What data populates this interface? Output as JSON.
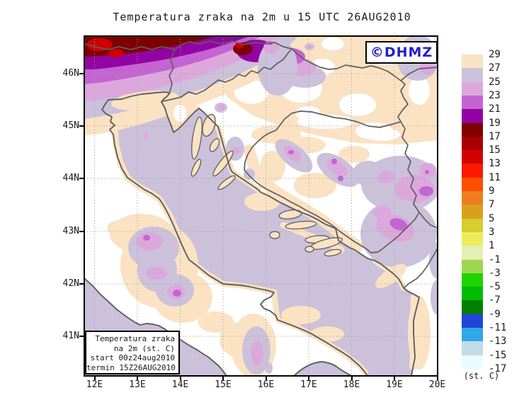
{
  "title": "Temperatura zraka na 2m u 15 UTC 26AUG2010",
  "watermark": {
    "text": "©DHMZ",
    "color": "#2121CC"
  },
  "info_box": {
    "lines": [
      "Temperatura zraka",
      "na 2m (st. C)",
      "start 00z24aug2010",
      "termin 15Z26AUG2010"
    ]
  },
  "axes": {
    "lat": [
      "46N",
      "45N",
      "44N",
      "43N",
      "42N",
      "41N"
    ],
    "lon": [
      "12E",
      "13E",
      "14E",
      "15E",
      "16E",
      "17E",
      "18E",
      "19E",
      "20E"
    ]
  },
  "legend": {
    "unit": "(st. C)",
    "labels": [
      "29",
      "27",
      "25",
      "23",
      "21",
      "19",
      "17",
      "15",
      "13",
      "11",
      "9",
      "7",
      "5",
      "3",
      "1",
      "-1",
      "-3",
      "-5",
      "-7",
      "-9",
      "-11",
      "-13",
      "-15",
      "-17"
    ],
    "colors": [
      "#FBE2C3",
      "#CBC2DB",
      "#DCA8DC",
      "#C464D3",
      "#9303A3",
      "#7E0000",
      "#A80000",
      "#D40000",
      "#FB1A00",
      "#FC4F00",
      "#EF7D20",
      "#D8A01C",
      "#D6CE2A",
      "#EEEB5C",
      "#E4EFB4",
      "#A0D64F",
      "#1ED300",
      "#00BC00",
      "#007F00",
      "#2244DC",
      "#2FA7E8",
      "#C2DCE5",
      "#EAFDFE"
    ]
  },
  "map_colors": {
    "csea": "#CBC1DA",
    "c27": "#FBE2C3",
    "c25": "#CBC1DA",
    "c23": "#DCA8DC",
    "c21": "#C464D3",
    "c19": "#9303A3",
    "c17": "#7E0000",
    "c13": "#CE0000"
  }
}
